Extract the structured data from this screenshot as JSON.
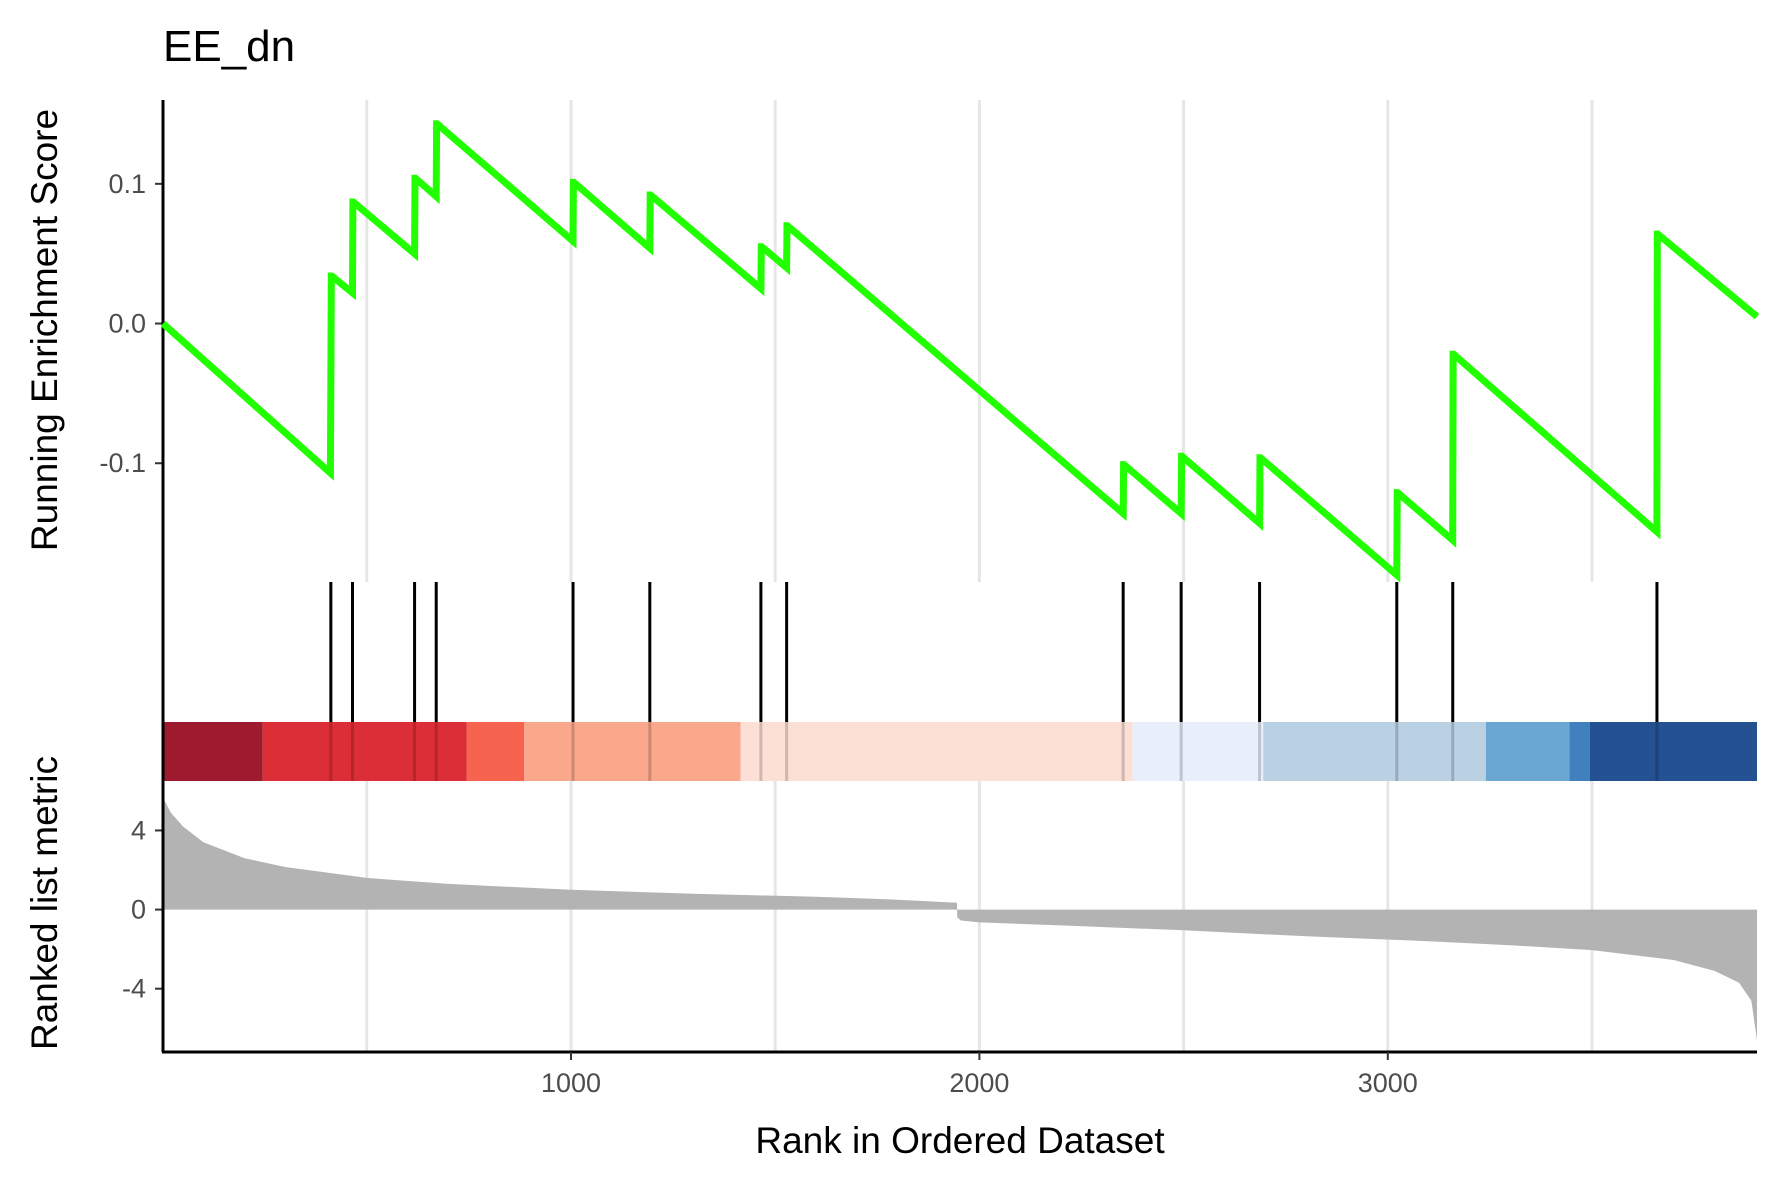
{
  "chart_data": {
    "type": "line",
    "title": "EE_dn",
    "xlabel": "Rank in Ordered Dataset",
    "xlim": [
      1,
      3904
    ],
    "x_ticks": [
      1000,
      2000,
      3000
    ],
    "x_tick_labels": [
      "1000",
      "2000",
      "3000"
    ],
    "grid": "vertical major and minor gridlines in upper and lower panels",
    "es_panel": {
      "ylabel": "Running Enrichment Score",
      "ylim": [
        -0.185,
        0.16
      ],
      "y_ticks": [
        0.1,
        0.0,
        -0.1
      ],
      "y_tick_labels": [
        "0.1",
        "0.0",
        "-0.1"
      ],
      "line_color": "#21ff00",
      "series": [
        {
          "x": [
            1,
            411,
            412,
            413,
            414,
            465,
            466,
            467,
            617,
            618,
            619,
            670,
            671,
            672,
            1005,
            1006,
            1007,
            1193,
            1194,
            1195,
            1465,
            1466,
            1467,
            1528,
            1529,
            1530,
            2352,
            2353,
            2354,
            2494,
            2495,
            2496,
            2686,
            2687,
            2688,
            3022,
            3023,
            3024,
            3159,
            3160,
            3161,
            3659,
            3660,
            3661,
            3904
          ],
          "y": [
            0.0,
            -0.107,
            -0.035,
            0.034,
            0.034,
            0.022,
            0.087,
            0.087,
            0.05,
            0.104,
            0.104,
            0.091,
            0.143,
            0.143,
            0.059,
            0.101,
            0.101,
            0.054,
            0.092,
            0.092,
            0.025,
            0.055,
            0.055,
            0.04,
            0.07,
            0.07,
            -0.136,
            -0.101,
            -0.101,
            -0.136,
            -0.095,
            -0.095,
            -0.143,
            -0.096,
            -0.096,
            -0.18,
            -0.121,
            -0.121,
            -0.155,
            -0.022,
            -0.022,
            -0.149,
            0.064,
            0.064,
            0.005
          ]
        }
      ]
    },
    "hits_panel": {
      "hit_positions": [
        412,
        465,
        617,
        670,
        1005,
        1193,
        1465,
        1528,
        2352,
        2494,
        2686,
        3022,
        3159,
        3659
      ],
      "color": "#000000"
    },
    "color_bar": {
      "segments": [
        {
          "from": 1,
          "to": 245,
          "color": "#9e1a2e"
        },
        {
          "from": 245,
          "to": 745,
          "color": "#dc2e36"
        },
        {
          "from": 745,
          "to": 885,
          "color": "#f6634f"
        },
        {
          "from": 885,
          "to": 1415,
          "color": "#f9a88b"
        },
        {
          "from": 1415,
          "to": 2375,
          "color": "#fce0d6"
        },
        {
          "from": 2375,
          "to": 2695,
          "color": "#e9eefb"
        },
        {
          "from": 2695,
          "to": 3240,
          "color": "#bad0e3"
        },
        {
          "from": 3240,
          "to": 3445,
          "color": "#6aa7d3"
        },
        {
          "from": 3445,
          "to": 3495,
          "color": "#3f80bd"
        },
        {
          "from": 3495,
          "to": 3904,
          "color": "#245192"
        }
      ]
    },
    "rank_panel": {
      "ylabel": "Ranked list metric",
      "ylim": [
        -7.2,
        6.5
      ],
      "y_ticks": [
        4,
        0,
        -4
      ],
      "y_tick_labels": [
        "4",
        "0",
        "-4"
      ],
      "fill_color": "#b3b3b3",
      "metric_curve": {
        "x": [
          1,
          5,
          20,
          50,
          100,
          200,
          300,
          500,
          700,
          1000,
          1300,
          1600,
          1800,
          1945,
          1946,
          1955,
          2000,
          2200,
          2500,
          2800,
          3100,
          3300,
          3500,
          3700,
          3800,
          3860,
          3890,
          3904
        ],
        "y": [
          6.2,
          5.5,
          4.9,
          4.2,
          3.4,
          2.6,
          2.15,
          1.6,
          1.3,
          1.0,
          0.8,
          0.65,
          0.5,
          0.35,
          -0.4,
          -0.55,
          -0.65,
          -0.8,
          -1.05,
          -1.35,
          -1.6,
          -1.8,
          -2.05,
          -2.55,
          -3.1,
          -3.7,
          -4.6,
          -6.6
        ]
      }
    }
  }
}
